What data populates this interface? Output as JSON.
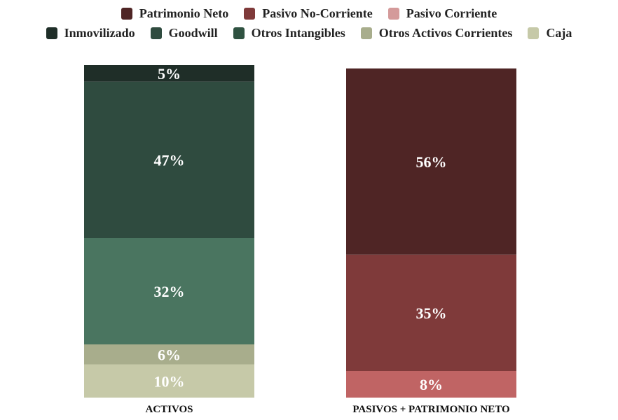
{
  "chart_data": {
    "type": "bar",
    "stacked": true,
    "normalized": true,
    "legend_position": "top",
    "legend_rows": [
      [
        {
          "name": "Patrimonio Neto",
          "color": "#4f2525"
        },
        {
          "name": "Pasivo No-Corriente",
          "color": "#7f3a3a"
        },
        {
          "name": "Pasivo Corriente",
          "color": "#d49a9a"
        }
      ],
      [
        {
          "name": "Inmovilizado",
          "color": "#1f2e28"
        },
        {
          "name": "Goodwill",
          "color": "#2f4b3f"
        },
        {
          "name": "Otros Intangibles",
          "color": "#2f5241"
        },
        {
          "name": "Otros Activos Corrientes",
          "color": "#a8ad8c"
        },
        {
          "name": "Caja",
          "color": "#c6c9a8"
        }
      ]
    ],
    "categories": [
      "ACTIVOS",
      "PASIVOS + PATRIMONIO NETO"
    ],
    "bars": [
      {
        "category": "ACTIVOS",
        "segments": [
          {
            "series": "Caja",
            "value": 10,
            "label": "10%",
            "color": "#c6c9a8"
          },
          {
            "series": "Otros Activos Corrientes",
            "value": 6,
            "label": "6%",
            "color": "#a8ad8c"
          },
          {
            "series": "Otros Intangibles",
            "value": 32,
            "label": "32%",
            "color": "#4a7560"
          },
          {
            "series": "Goodwill",
            "value": 47,
            "label": "47%",
            "color": "#2f4b3f"
          },
          {
            "series": "Inmovilizado",
            "value": 5,
            "label": "5%",
            "color": "#1f2e28"
          }
        ]
      },
      {
        "category": "PASIVOS + PATRIMONIO NETO",
        "segments": [
          {
            "series": "Pasivo Corriente",
            "value": 8,
            "label": "8%",
            "color": "#c06464"
          },
          {
            "series": "Pasivo No-Corriente",
            "value": 35,
            "label": "35%",
            "color": "#7f3a3a"
          },
          {
            "series": "Patrimonio Neto",
            "value": 56,
            "label": "56%",
            "color": "#4f2525"
          }
        ]
      }
    ],
    "ylim": [
      0,
      100
    ],
    "grid": false
  }
}
